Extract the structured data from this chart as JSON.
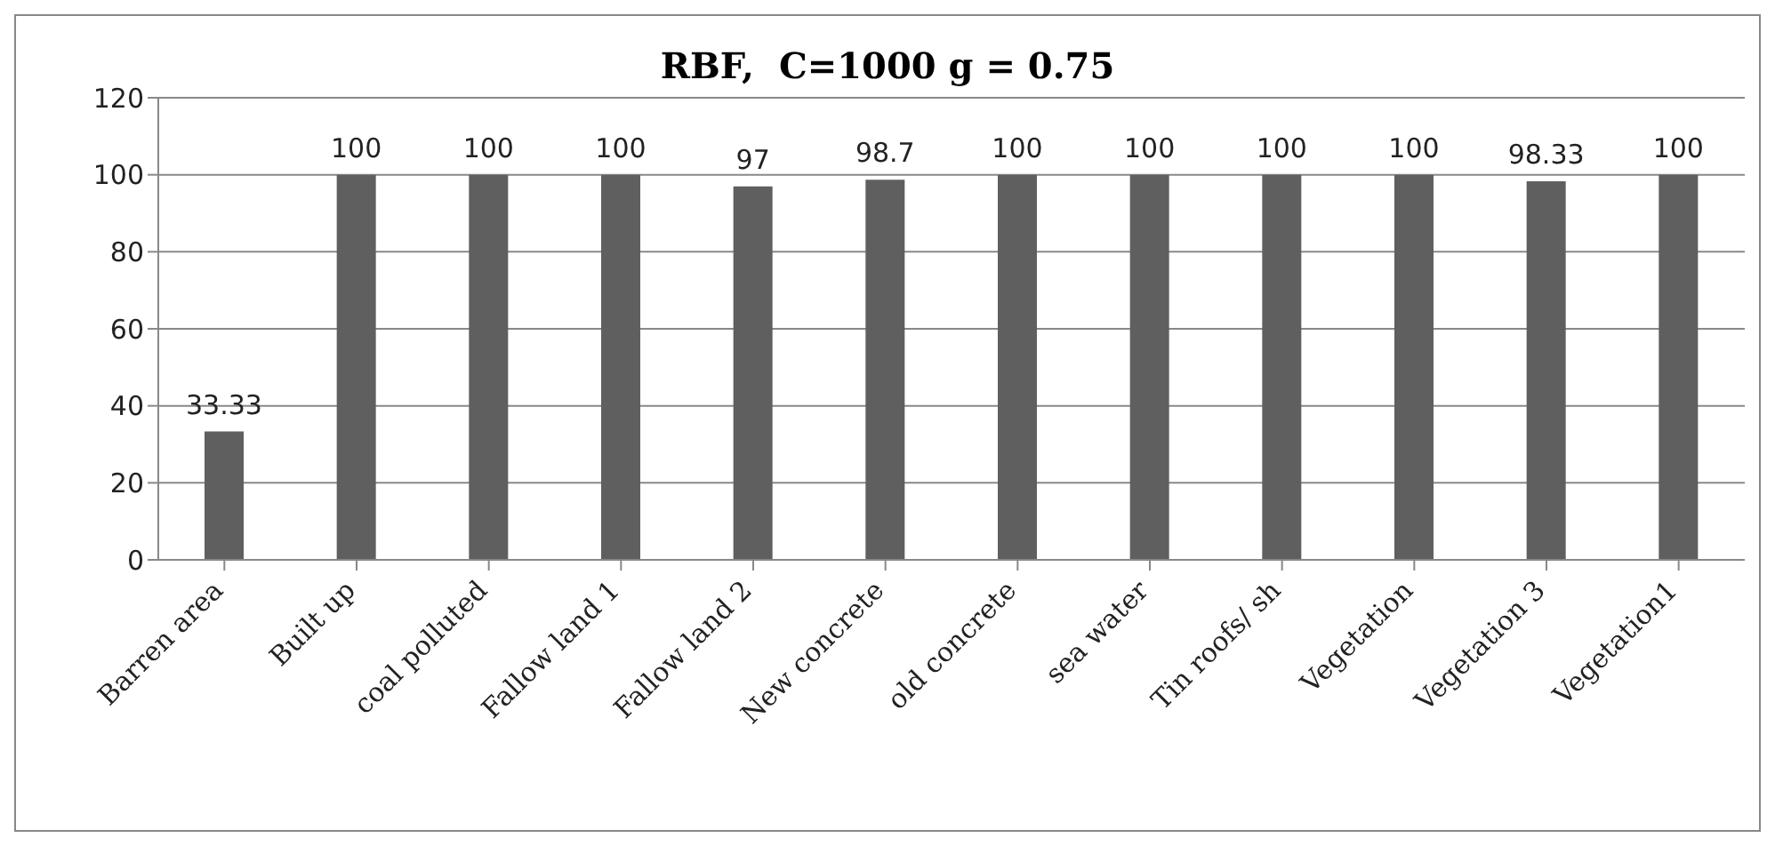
{
  "chart_data": {
    "type": "bar",
    "title": "RBF,  C=1000 g = 0.75",
    "categories": [
      "Barren area",
      "Built up",
      "coal polluted",
      "Fallow land 1",
      "Fallow land 2",
      "New concrete",
      "old concrete",
      "sea water",
      "Tin roofs/ sh",
      "Vegetation",
      "Vegetation 3",
      "Vegetation1"
    ],
    "values": [
      33.33,
      100,
      100,
      100,
      97,
      98.7,
      100,
      100,
      100,
      100,
      98.33,
      100
    ],
    "value_labels": [
      "33.33",
      "100",
      "100",
      "100",
      "97",
      "98.7",
      "100",
      "100",
      "100",
      "100",
      "98.33",
      "100"
    ],
    "color": "#5f5f5f",
    "ylim": [
      0,
      120
    ],
    "yticks": [
      0,
      20,
      40,
      60,
      80,
      100,
      120
    ],
    "grid": "y"
  }
}
